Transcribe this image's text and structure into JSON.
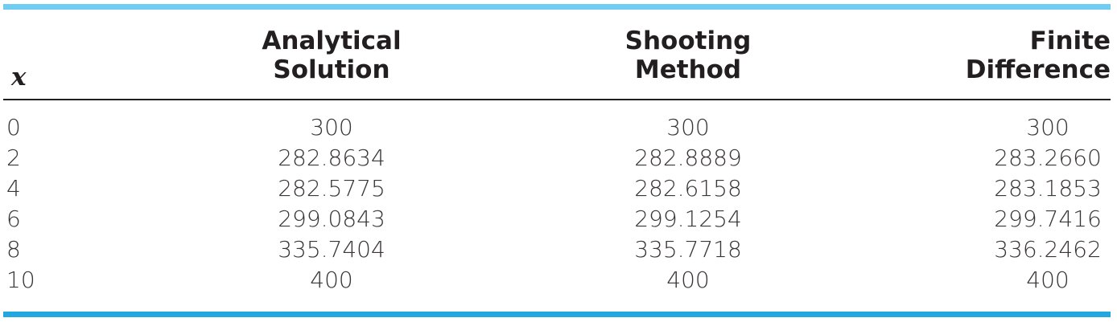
{
  "table": {
    "headers": {
      "x": "x",
      "analytical": [
        "Analytical",
        "Solution"
      ],
      "shooting": [
        "Shooting",
        "Method"
      ],
      "finite": [
        "Finite",
        "Difference"
      ]
    },
    "rows": [
      {
        "x": "0",
        "analytical": "300",
        "shooting": "300",
        "finite": "300"
      },
      {
        "x": "2",
        "analytical": "282.8634",
        "shooting": "282.8889",
        "finite": "283.2660"
      },
      {
        "x": "4",
        "analytical": "282.5775",
        "shooting": "282.6158",
        "finite": "283.1853"
      },
      {
        "x": "6",
        "analytical": "299.0843",
        "shooting": "299.1254",
        "finite": "299.7416"
      },
      {
        "x": "8",
        "analytical": "335.7404",
        "shooting": "335.7718",
        "finite": "336.2462"
      },
      {
        "x": "10",
        "analytical": "400",
        "shooting": "400",
        "finite": "400"
      }
    ]
  },
  "colors": {
    "top_rule": "#6fcdf1",
    "bottom_rule": "#22a7e0",
    "text": "#231f20"
  }
}
